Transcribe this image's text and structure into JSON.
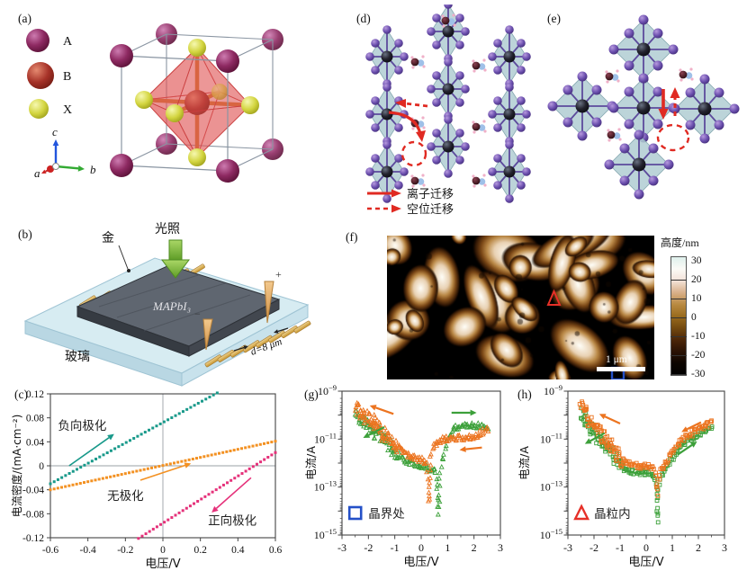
{
  "figure": {
    "background": "#ffffff"
  },
  "panels": {
    "a": {
      "label": "(a)",
      "legend": [
        {
          "label": "A",
          "color": "#7c1f52"
        },
        {
          "label": "B",
          "color": "#95271e"
        },
        {
          "label": "X",
          "color": "#cbcd2e"
        }
      ],
      "axis_labels": {
        "a": "a",
        "b": "b",
        "c": "c"
      }
    },
    "b": {
      "label": "(b)",
      "gold_label": "金",
      "light_label": "光照",
      "film_label": "MAPbI₃",
      "glass_label": "玻璃",
      "gap_label": "d=8 μm",
      "plus": "+",
      "minus": "−"
    },
    "c": {
      "label": "(c)"
    },
    "d": {
      "label": "(d)",
      "legend": [
        {
          "style": "solid",
          "label": "离子迁移",
          "color": "#e02a22"
        },
        {
          "style": "dashed",
          "label": "空位迁移",
          "color": "#e02a22"
        }
      ]
    },
    "e": {
      "label": "(e)"
    },
    "f": {
      "label": "(f)",
      "colorbar": {
        "title": "高度/nm",
        "ticks": [
          30,
          20,
          10,
          0,
          -10,
          -20,
          -30
        ],
        "colors": [
          "#dff0ec",
          "#fbfaf6",
          "#f3e2d8",
          "#d9b08a",
          "#b98a42",
          "#9a6c1e",
          "#744a10",
          "#4c2608",
          "#2a1204",
          "#0c0500",
          "#000000"
        ]
      },
      "scalebar_label": "1 μm",
      "marker_triangle_color": "#e63028",
      "marker_square_color": "#2450c8"
    },
    "g": {
      "label": "(g)"
    },
    "h": {
      "label": "(h)"
    }
  },
  "chart_data": [
    {
      "panel": "c",
      "type": "line",
      "xlabel": "电压/V",
      "ylabel": "电流密度/(mA·cm⁻²)",
      "xlim": [
        -0.6,
        0.6
      ],
      "ylim": [
        -0.12,
        0.12
      ],
      "xticks": [
        -0.6,
        -0.4,
        -0.2,
        0,
        0.2,
        0.4,
        0.6
      ],
      "yticks": [
        -0.12,
        -0.08,
        -0.04,
        0,
        0.04,
        0.08,
        0.12
      ],
      "grid": "zero-lines",
      "series": [
        {
          "name": "负向极化",
          "color": "#18998a",
          "points": [
            [
              -0.6,
              -0.03
            ],
            [
              0.31,
              0.125
            ]
          ]
        },
        {
          "name": "无极化",
          "color": "#f39122",
          "points": [
            [
              -0.6,
              -0.04
            ],
            [
              0.6,
              0.041
            ]
          ]
        },
        {
          "name": "正向极化",
          "color": "#e5317a",
          "points": [
            [
              -0.15,
              -0.125
            ],
            [
              0.6,
              0.022
            ]
          ]
        }
      ],
      "annotations": [
        {
          "text": "负向极化",
          "x": -0.43,
          "y": 0.06
        },
        {
          "text": "无极化",
          "x": -0.2,
          "y": -0.057
        },
        {
          "text": "正向极化",
          "x": 0.37,
          "y": -0.098
        }
      ],
      "arrows": [
        {
          "color": "#18998a",
          "from": [
            -0.5,
            0.0
          ],
          "to": [
            -0.26,
            0.053
          ]
        },
        {
          "color": "#f39122",
          "from": [
            -0.12,
            -0.024
          ],
          "to": [
            0.15,
            0.004
          ]
        },
        {
          "color": "#e5317a",
          "from": [
            0.47,
            -0.02
          ],
          "to": [
            0.26,
            -0.078
          ]
        }
      ]
    },
    {
      "panel": "g",
      "type": "scatter",
      "marker": "triangle",
      "ylog": true,
      "xlabel": "电压/V",
      "ylabel": "电流/A",
      "xlim": [
        -3,
        3
      ],
      "ylim_exp": [
        -15,
        -9
      ],
      "xticks": [
        -3,
        -2,
        -1,
        0,
        1,
        2,
        3
      ],
      "ytick_exps": [
        -9,
        -11,
        -13,
        -15
      ],
      "legend": {
        "symbol": "square",
        "color": "#2450c8",
        "label": "晶界处"
      },
      "series": [
        {
          "name": "sweep-green",
          "color": "#3ca03a",
          "anchors": [
            [
              -2.5,
              -10.0
            ],
            [
              -2.3,
              -10.15
            ],
            [
              -2.0,
              -10.4
            ],
            [
              -1.7,
              -10.7
            ],
            [
              -1.4,
              -11.0
            ],
            [
              -1.1,
              -11.4
            ],
            [
              -0.8,
              -11.75
            ],
            [
              -0.5,
              -11.95
            ],
            [
              -0.2,
              -12.05
            ],
            [
              0.1,
              -12.15
            ],
            [
              0.35,
              -12.25
            ],
            [
              0.5,
              -12.3
            ],
            [
              0.6,
              -12.8
            ],
            [
              0.65,
              -14.2
            ],
            [
              0.68,
              -13.3
            ],
            [
              0.72,
              -12.4
            ],
            [
              0.8,
              -11.9
            ],
            [
              0.9,
              -11.35
            ],
            [
              1.05,
              -10.9
            ],
            [
              1.25,
              -10.55
            ],
            [
              1.5,
              -10.45
            ],
            [
              1.9,
              -10.4
            ],
            [
              2.2,
              -10.45
            ],
            [
              2.55,
              -10.55
            ]
          ]
        },
        {
          "name": "sweep-orange",
          "color": "#ec7420",
          "anchors": [
            [
              -2.5,
              -9.55
            ],
            [
              -2.45,
              -9.75
            ],
            [
              -2.3,
              -9.85
            ],
            [
              -2.1,
              -10.05
            ],
            [
              -1.8,
              -10.35
            ],
            [
              -1.5,
              -10.65
            ],
            [
              -1.2,
              -10.95
            ],
            [
              -0.9,
              -11.3
            ],
            [
              -0.6,
              -11.6
            ],
            [
              -0.3,
              -11.75
            ],
            [
              -0.1,
              -11.85
            ],
            [
              0.1,
              -11.9
            ],
            [
              0.2,
              -12.1
            ],
            [
              0.27,
              -13.0
            ],
            [
              0.3,
              -13.7
            ],
            [
              0.33,
              -12.6
            ],
            [
              0.36,
              -11.8
            ],
            [
              0.45,
              -11.35
            ],
            [
              0.6,
              -11.15
            ],
            [
              0.9,
              -11.0
            ],
            [
              1.3,
              -10.95
            ],
            [
              1.7,
              -10.95
            ],
            [
              2.1,
              -10.85
            ],
            [
              2.35,
              -10.7
            ],
            [
              2.55,
              -10.6
            ]
          ]
        }
      ],
      "sweep_arrows": [
        {
          "color": "#ec7420",
          "from": [
            -1.05,
            -9.95
          ],
          "to": [
            -1.95,
            -9.6
          ]
        },
        {
          "color": "#3ca03a",
          "from": [
            -1.4,
            -10.5
          ],
          "to": [
            -2.2,
            -10.95
          ]
        },
        {
          "color": "#3ca03a",
          "from": [
            1.15,
            -9.9
          ],
          "to": [
            2.1,
            -9.9
          ]
        },
        {
          "color": "#ec7420",
          "from": [
            2.3,
            -11.35
          ],
          "to": [
            1.45,
            -11.45
          ]
        }
      ]
    },
    {
      "panel": "h",
      "type": "scatter",
      "marker": "square",
      "ylog": true,
      "xlabel": "电压/V",
      "ylabel": "电流/A",
      "xlim": [
        -3,
        3
      ],
      "ylim_exp": [
        -15,
        -9
      ],
      "xticks": [
        -3,
        -2,
        -1,
        0,
        1,
        2,
        3
      ],
      "ytick_exps": [
        -9,
        -11,
        -13,
        -15
      ],
      "legend": {
        "symbol": "triangle",
        "color": "#e63028",
        "label": "晶粒内"
      },
      "series": [
        {
          "name": "sweep-green",
          "color": "#3ca03a",
          "anchors": [
            [
              -2.5,
              -9.85
            ],
            [
              -2.35,
              -10.15
            ],
            [
              -2.15,
              -10.45
            ],
            [
              -1.9,
              -10.8
            ],
            [
              -1.65,
              -11.1
            ],
            [
              -1.4,
              -11.5
            ],
            [
              -1.15,
              -11.9
            ],
            [
              -0.9,
              -12.2
            ],
            [
              -0.6,
              -12.35
            ],
            [
              -0.3,
              -12.4
            ],
            [
              0.0,
              -12.4
            ],
            [
              0.25,
              -12.45
            ],
            [
              0.38,
              -12.8
            ],
            [
              0.43,
              -14.5
            ],
            [
              0.47,
              -13.2
            ],
            [
              0.55,
              -12.6
            ],
            [
              0.75,
              -12.25
            ],
            [
              1.0,
              -11.8
            ],
            [
              1.3,
              -11.35
            ],
            [
              1.6,
              -11.05
            ],
            [
              2.0,
              -10.8
            ],
            [
              2.3,
              -10.6
            ],
            [
              2.55,
              -10.45
            ]
          ]
        },
        {
          "name": "sweep-orange",
          "color": "#ec7420",
          "anchors": [
            [
              -2.5,
              -9.45
            ],
            [
              -2.4,
              -9.8
            ],
            [
              -2.25,
              -10.1
            ],
            [
              -2.05,
              -10.4
            ],
            [
              -1.8,
              -10.7
            ],
            [
              -1.55,
              -10.95
            ],
            [
              -1.3,
              -11.35
            ],
            [
              -1.05,
              -11.75
            ],
            [
              -0.8,
              -12.0
            ],
            [
              -0.5,
              -12.1
            ],
            [
              -0.2,
              -12.15
            ],
            [
              0.1,
              -12.15
            ],
            [
              0.3,
              -12.2
            ],
            [
              0.38,
              -12.5
            ],
            [
              0.42,
              -13.4
            ],
            [
              0.46,
              -12.7
            ],
            [
              0.55,
              -12.3
            ],
            [
              0.75,
              -12.0
            ],
            [
              1.0,
              -11.55
            ],
            [
              1.3,
              -11.1
            ],
            [
              1.6,
              -10.85
            ],
            [
              2.0,
              -10.6
            ],
            [
              2.3,
              -10.45
            ],
            [
              2.55,
              -10.3
            ]
          ]
        }
      ],
      "sweep_arrows": [
        {
          "color": "#ec7420",
          "from": [
            -1.0,
            -10.35
          ],
          "to": [
            -1.8,
            -9.95
          ]
        },
        {
          "color": "#3ca03a",
          "from": [
            -1.6,
            -10.75
          ],
          "to": [
            -2.35,
            -11.2
          ]
        },
        {
          "color": "#ec7420",
          "from": [
            2.1,
            -10.3
          ],
          "to": [
            1.35,
            -10.7
          ]
        },
        {
          "color": "#3ca03a",
          "from": [
            1.2,
            -11.65
          ],
          "to": [
            1.95,
            -11.1
          ]
        }
      ]
    }
  ]
}
